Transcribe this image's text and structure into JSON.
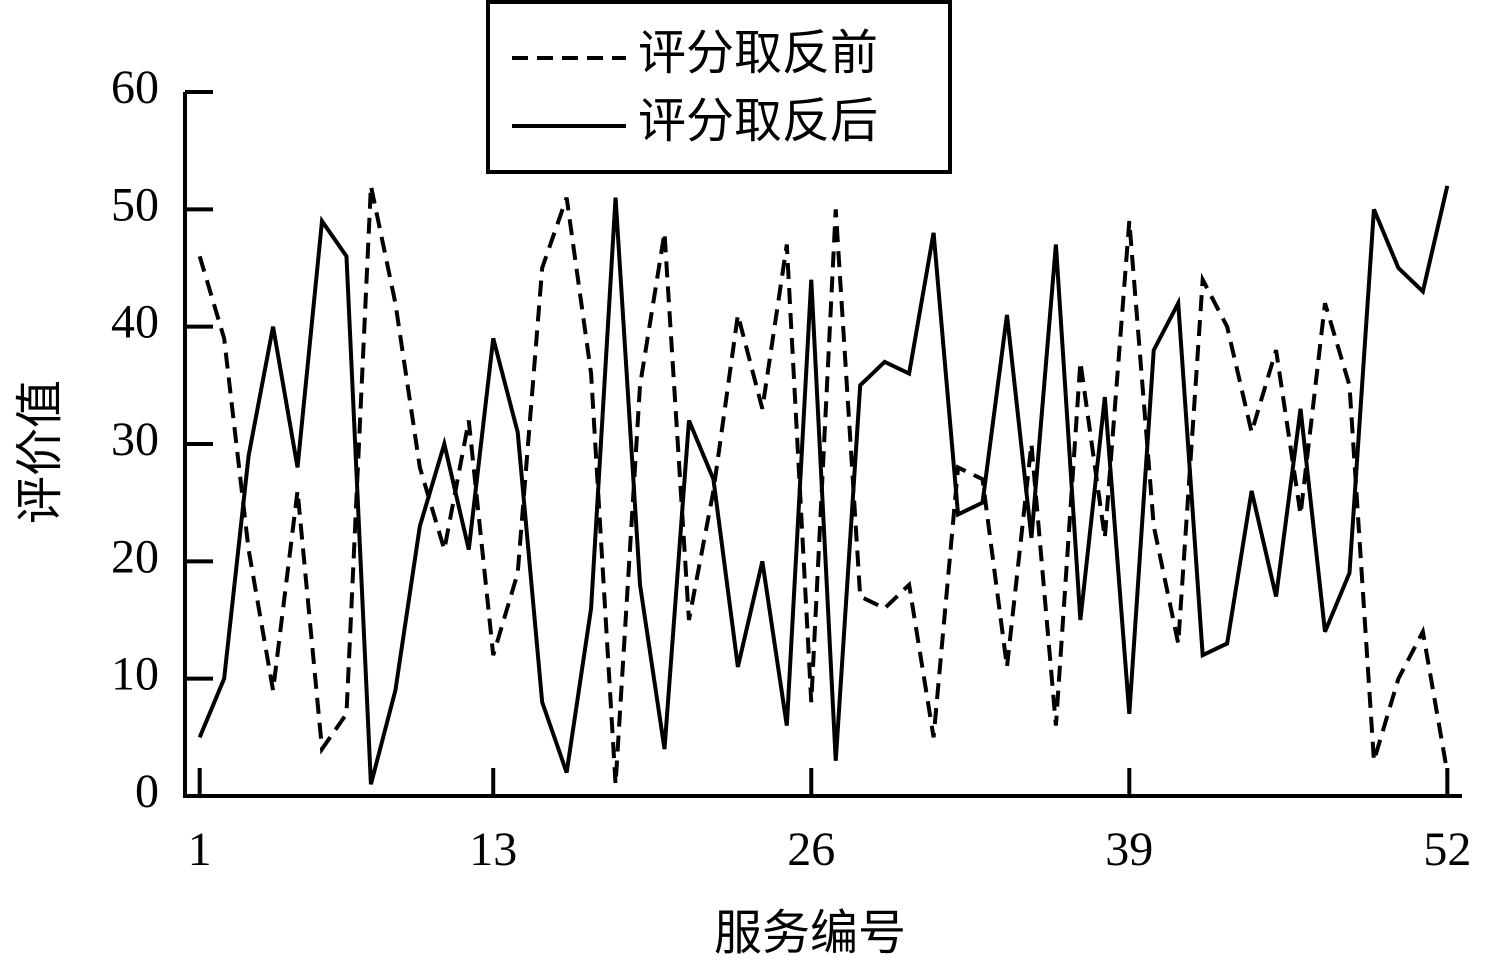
{
  "chart_data": {
    "type": "line",
    "xlabel": "服务编号",
    "ylabel": "评价值",
    "x": [
      1,
      2,
      3,
      4,
      5,
      6,
      7,
      8,
      9,
      10,
      11,
      12,
      13,
      14,
      15,
      16,
      17,
      18,
      19,
      20,
      21,
      22,
      23,
      24,
      25,
      26,
      27,
      28,
      29,
      30,
      31,
      32,
      33,
      34,
      35,
      36,
      37,
      38,
      39,
      40,
      41,
      42,
      43,
      44,
      45,
      46,
      47,
      48,
      49,
      50,
      51,
      52
    ],
    "series": [
      {
        "name": "评分取反前",
        "color": "#000000",
        "linestyle": "dashed",
        "values": [
          46,
          39,
          21,
          9,
          26,
          4,
          7,
          52,
          42,
          28,
          21,
          32,
          12,
          19,
          45,
          51,
          36,
          1,
          35,
          48,
          15,
          26,
          41,
          33,
          47,
          8,
          50,
          17,
          16,
          18,
          5,
          28,
          27,
          11,
          30,
          6,
          37,
          22,
          49,
          23,
          13,
          44,
          40,
          31,
          38,
          24,
          42,
          35,
          3,
          10,
          14,
          2
        ]
      },
      {
        "name": "评分取反后",
        "color": "#000000",
        "linestyle": "solid",
        "values": [
          5,
          10,
          29,
          40,
          28,
          49,
          46,
          1,
          9,
          23,
          30,
          21,
          39,
          31,
          8,
          2,
          16,
          51,
          18,
          4,
          32,
          27,
          11,
          20,
          6,
          44,
          3,
          35,
          37,
          36,
          48,
          24,
          25,
          41,
          22,
          47,
          15,
          34,
          7,
          38,
          42,
          12,
          13,
          26,
          17,
          33,
          14,
          19,
          50,
          45,
          43,
          52
        ]
      }
    ],
    "xlim": [
      0.4,
      52.6
    ],
    "xticks": [
      1,
      13,
      26,
      39,
      52
    ],
    "ylim": [
      0,
      60
    ],
    "yticks": [
      0,
      10,
      20,
      30,
      40,
      50,
      60
    ],
    "legend": "top"
  }
}
